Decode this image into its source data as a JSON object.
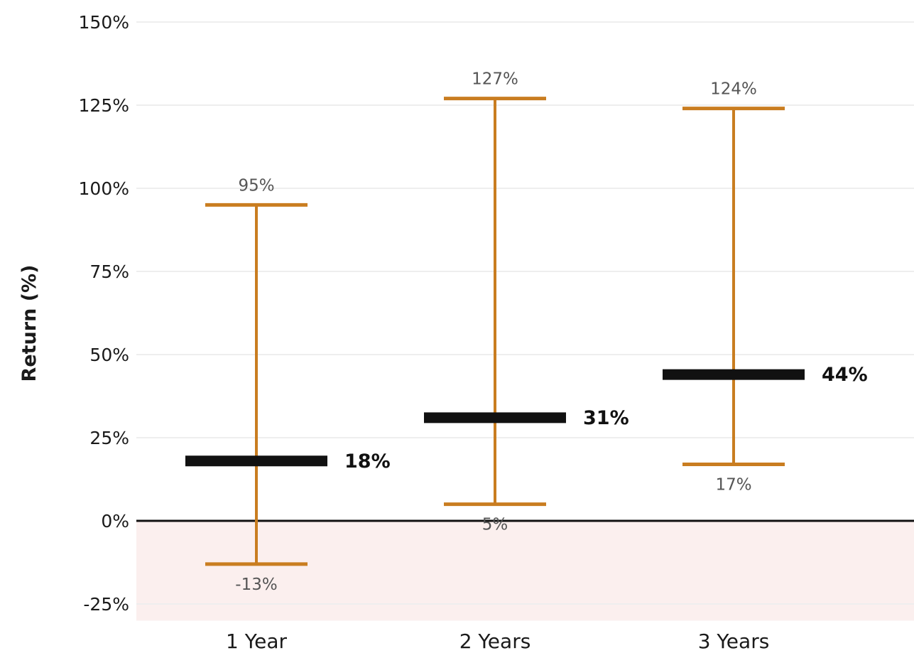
{
  "chart_data": {
    "type": "range",
    "title": "",
    "xlabel": "",
    "ylabel": "Return (%)",
    "categories": [
      "1 Year",
      "2 Years",
      "3 Years"
    ],
    "series": [
      {
        "values": [
          {
            "low": -13,
            "high": 95,
            "median": 18,
            "low_label": "-13%",
            "high_label": "95%",
            "median_label": "18%"
          },
          {
            "low": 5,
            "high": 127,
            "median": 31,
            "low_label": "5%",
            "high_label": "127%",
            "median_label": "31%"
          },
          {
            "low": 17,
            "high": 124,
            "median": 44,
            "low_label": "17%",
            "high_label": "124%",
            "median_label": "44%"
          }
        ]
      }
    ],
    "ylim": [
      -30,
      152
    ],
    "yticks": [
      -25,
      0,
      25,
      50,
      75,
      100,
      125,
      150
    ],
    "ytick_labels": [
      "-25%",
      "0%",
      "25%",
      "50%",
      "75%",
      "100%",
      "125%",
      "150%"
    ],
    "grid": true,
    "negative_region_shaded": true,
    "colors": {
      "range": "#c97d20",
      "median": "#111111",
      "zero_line": "#111111",
      "grid": "#eeeeee",
      "negative_fill": "#fbefee"
    }
  }
}
